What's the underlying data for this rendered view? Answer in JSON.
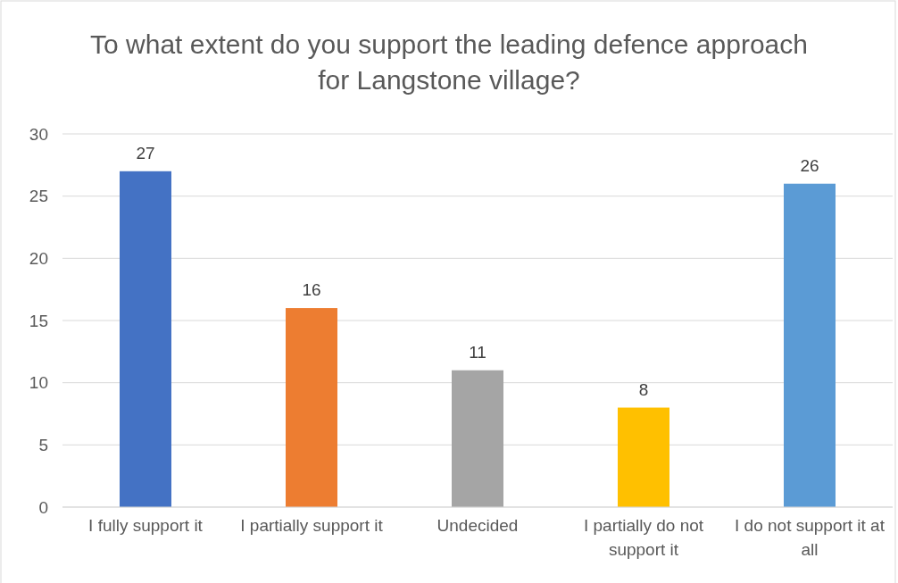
{
  "chart_data": {
    "type": "bar",
    "title": "To what extent do you support the leading defence approach for Langstone village?",
    "categories": [
      "I fully support it",
      "I partially support it",
      "Undecided",
      "I partially do not support it",
      "I do not support it at all"
    ],
    "values": [
      27,
      16,
      11,
      8,
      26
    ],
    "colors": [
      "#4472c4",
      "#ed7d31",
      "#a5a5a5",
      "#ffc000",
      "#5b9bd5"
    ],
    "ylim": [
      0,
      30
    ],
    "yticks": [
      0,
      5,
      10,
      15,
      20,
      25,
      30
    ],
    "grid": "y",
    "data_labels": true
  }
}
